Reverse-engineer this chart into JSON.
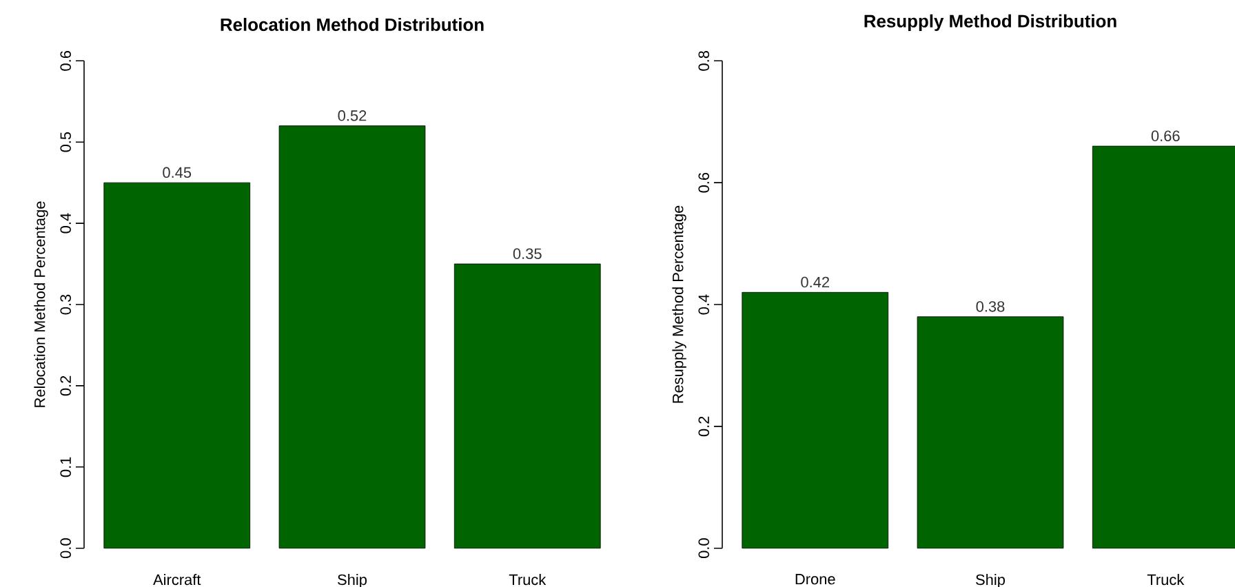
{
  "chart_data": [
    {
      "type": "bar",
      "title": "Relocation Method Distribution",
      "ylabel": "Relocation Method Percentage",
      "categories": [
        "Aircraft",
        "Ship",
        "Truck"
      ],
      "values": [
        0.45,
        0.52,
        0.35
      ],
      "color": "#006400",
      "ylim": [
        0,
        0.6
      ],
      "yticks": [
        {
          "value": 0,
          "label": "0.0"
        },
        0.1,
        0.2,
        0.3,
        0.4,
        0.5,
        0.6
      ],
      "data_labels": true
    },
    {
      "type": "bar",
      "title": "Resupply Method Distribution",
      "ylabel": "Resupply Method Percentage",
      "categories": [
        "Drone",
        "Ship",
        "Truck"
      ],
      "values": [
        0.42,
        0.38,
        0.66
      ],
      "color": "#006400",
      "ylim": [
        0,
        0.8
      ],
      "yticks": [
        {
          "value": 0,
          "label": "0.0"
        },
        0.2,
        0.4,
        0.6,
        0.8
      ],
      "data_labels": true
    }
  ]
}
